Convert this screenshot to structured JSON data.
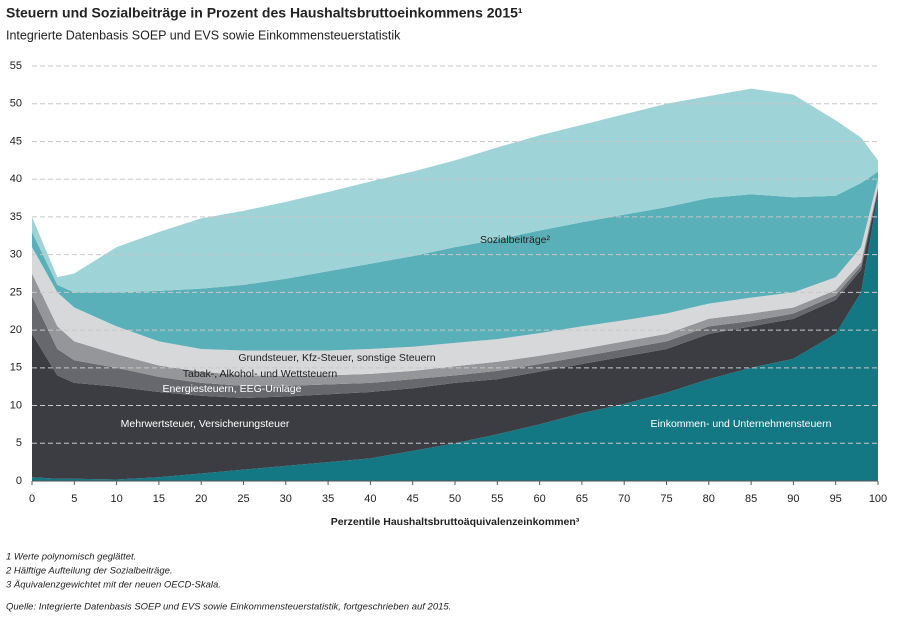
{
  "chart_data": {
    "type": "stacked-area",
    "title": "Steuern und Sozialbeiträge in Prozent des Haushaltsbruttoeinkommens 2015¹",
    "subtitle": "Integrierte Datenbasis SOEP und EVS sowie Einkommensteuerstatistik",
    "x_label": "Perzentile Haushaltsbruttoäquivalenzeinkommen³",
    "x": [
      0,
      3,
      5,
      10,
      15,
      20,
      25,
      30,
      35,
      40,
      45,
      50,
      55,
      60,
      65,
      70,
      75,
      80,
      85,
      90,
      95,
      98,
      100
    ],
    "series": [
      {
        "name": "Einkommen- und Unternehmensteuern",
        "color": "#137883",
        "values": [
          0.5,
          0.3,
          0.3,
          0.2,
          0.5,
          1,
          1.5,
          2,
          2.5,
          3,
          4,
          5,
          6.2,
          7.5,
          9,
          10.2,
          11.7,
          13.5,
          15,
          16.2,
          19.5,
          25,
          38
        ]
      },
      {
        "name": "Mehrwertsteuer, Versicherungsteuer",
        "color": "#3b3d42",
        "values": [
          19,
          13.7,
          12.7,
          12.3,
          11.3,
          10.3,
          9.5,
          9.2,
          9,
          8.8,
          8.3,
          8,
          7.3,
          7,
          6.5,
          6.3,
          5.8,
          6,
          5.5,
          5.3,
          4.5,
          3,
          0.5
        ]
      },
      {
        "name": "Energiesteuern, EEG-Umlage",
        "color": "#66686d",
        "values": [
          5,
          3.5,
          3,
          2.5,
          2,
          1.7,
          1.6,
          1.4,
          1.3,
          1.2,
          1.2,
          1,
          1.1,
          1,
          1,
          1,
          1,
          1,
          0.7,
          0.7,
          0.6,
          0.5,
          0.3
        ]
      },
      {
        "name": "Tabak-, Alkohol- und Wettsteuern",
        "color": "#949699",
        "values": [
          3,
          3,
          2.5,
          1.8,
          1.5,
          1.5,
          1.4,
          1.3,
          1.2,
          1.2,
          1.1,
          1.2,
          1.2,
          1.1,
          1,
          1,
          1,
          1,
          1,
          0.8,
          0.7,
          0.5,
          0.2
        ]
      },
      {
        "name": "Grundsteuer, Kfz-Steuer, sonstige Steuern",
        "color": "#d7d8d9",
        "values": [
          3.5,
          4.5,
          4.5,
          3.7,
          3.2,
          3,
          3.3,
          3.4,
          3.3,
          3.3,
          3.2,
          3.1,
          3,
          3,
          3,
          2.8,
          2.7,
          2,
          2.1,
          2,
          1.7,
          2,
          1
        ]
      },
      {
        "name": "Sozialbeiträge²",
        "color": "#5ab0b8",
        "values": [
          2,
          1,
          2,
          4.5,
          6.7,
          8,
          8.7,
          9.5,
          10.5,
          11.3,
          12,
          12.7,
          13.2,
          13.6,
          13.8,
          14,
          14.1,
          14,
          13.7,
          12.6,
          10.8,
          8.5,
          1
        ]
      },
      {
        "color": "#9ed3d8",
        "values": [
          2,
          1,
          2.5,
          6,
          7.8,
          9.3,
          9.8,
          10.2,
          10.5,
          10.9,
          11.2,
          11.5,
          12.2,
          12.6,
          12.9,
          13.3,
          13.7,
          13.5,
          14,
          13.6,
          10,
          6,
          1.5
        ]
      }
    ],
    "xlim": [
      0,
      100
    ],
    "xticks": [
      0,
      5,
      10,
      15,
      20,
      25,
      30,
      35,
      40,
      45,
      50,
      55,
      60,
      65,
      70,
      75,
      80,
      85,
      90,
      95,
      100
    ],
    "ylim": [
      0,
      55
    ],
    "yticks": [
      0,
      5,
      10,
      15,
      20,
      25,
      30,
      35,
      40,
      45,
      50,
      55
    ],
    "grid": true,
    "footnotes": [
      "1  Werte polynomisch geglättet.",
      "2  Hälftige Aufteilung der Sozialbeiträge.",
      "3  Äquivalenzgewichtet mit der neuen OECD-Skala."
    ],
    "source": "Quelle: Integrierte Datenbasis SOEP und EVS sowie Einkommensteuerstatistik, fortgeschrieben auf 2015."
  }
}
